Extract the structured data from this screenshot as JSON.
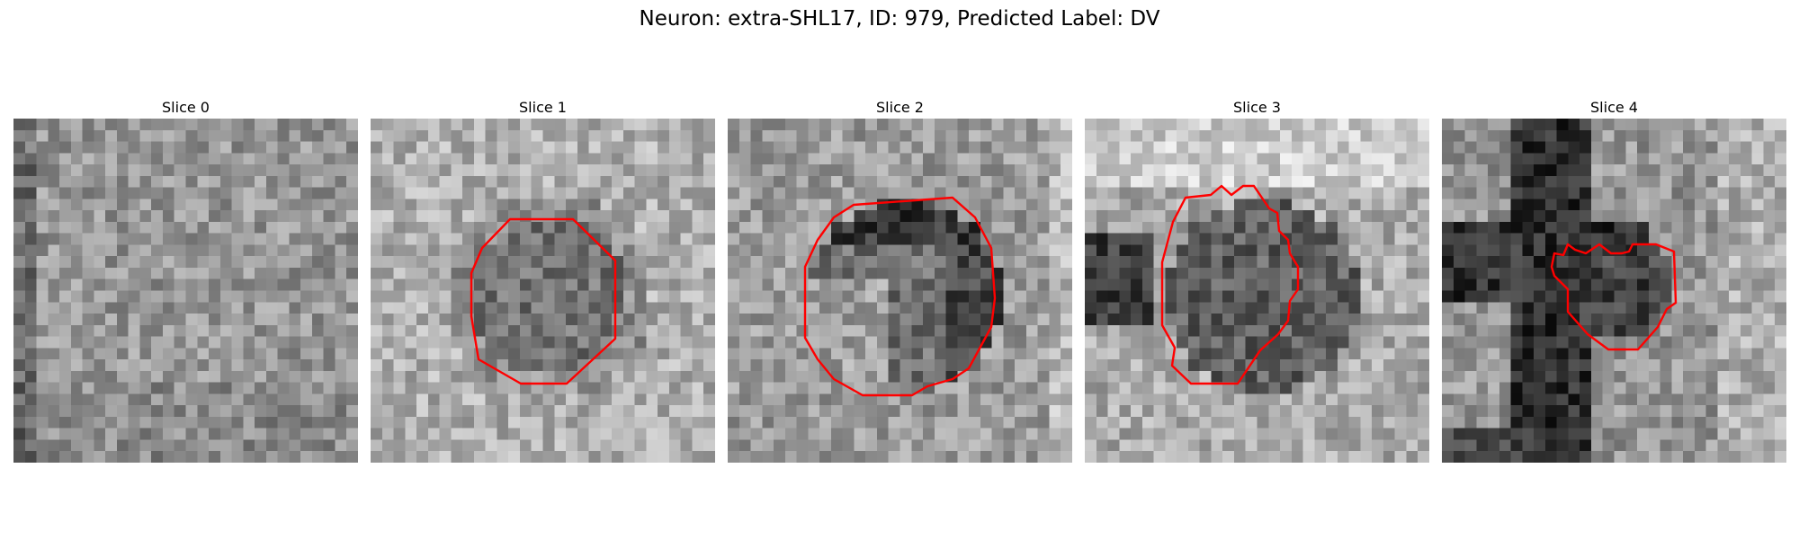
{
  "figure": {
    "title": "Neuron: extra-SHL17, ID: 979, Predicted Label: DV"
  },
  "panels": [
    {
      "title": "Slice 0",
      "has_contour": false
    },
    {
      "title": "Slice 1",
      "has_contour": true
    },
    {
      "title": "Slice 2",
      "has_contour": true
    },
    {
      "title": "Slice 3",
      "has_contour": true
    },
    {
      "title": "Slice 4",
      "has_contour": true
    }
  ],
  "colors": {
    "contour": "#ff0000",
    "background": "#ffffff"
  }
}
